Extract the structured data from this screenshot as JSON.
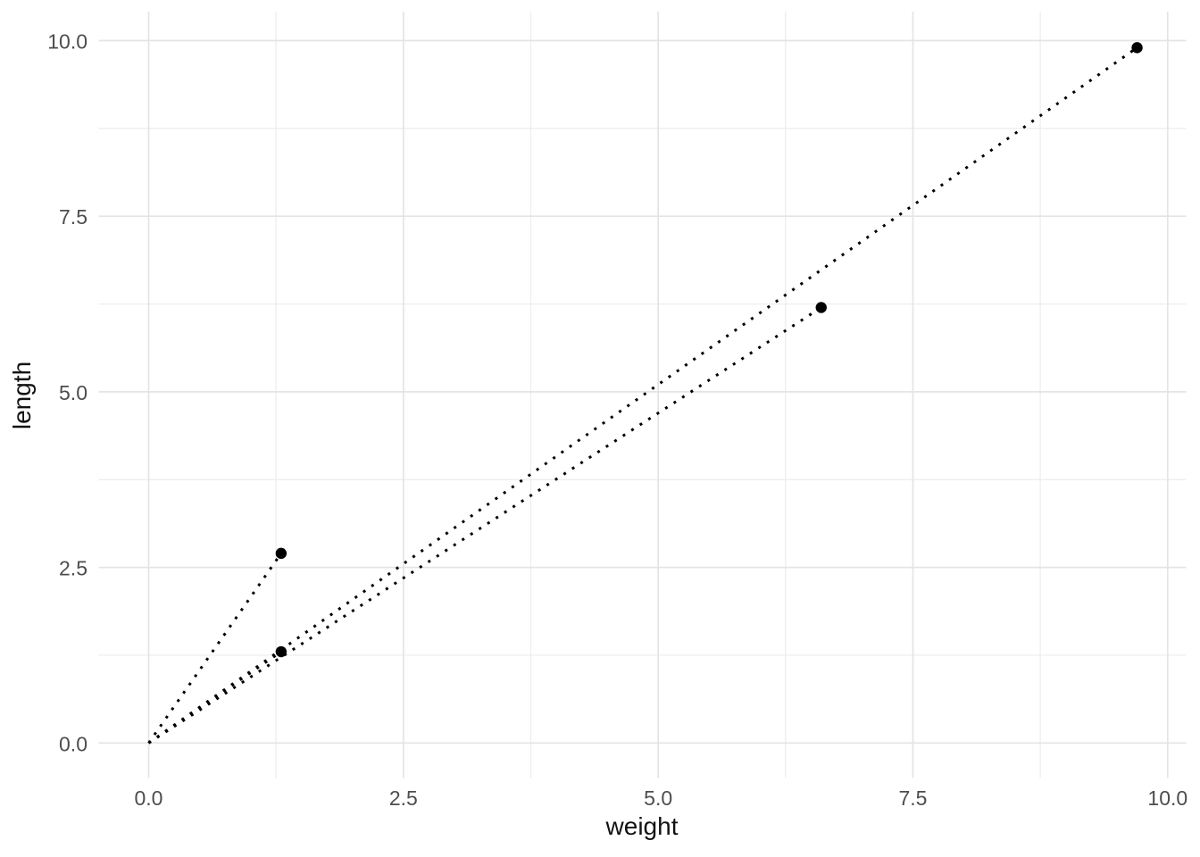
{
  "chart_data": {
    "type": "scatter",
    "title": "",
    "xlabel": "weight",
    "ylabel": "length",
    "x_ticks": [
      0,
      2.5,
      5,
      7.5,
      10
    ],
    "x_tick_labels": [
      "0.0",
      "2.5",
      "5.0",
      "7.5",
      "10.0"
    ],
    "y_ticks": [
      0,
      2.5,
      5,
      7.5,
      10
    ],
    "y_tick_labels": [
      "0.0",
      "2.5",
      "5.0",
      "7.5",
      "10.0"
    ],
    "x_minor_ticks": [
      1.25,
      3.75,
      6.25,
      8.75
    ],
    "y_minor_ticks": [
      1.25,
      3.75,
      6.25,
      8.75
    ],
    "xlim": [
      -0.49,
      10.19
    ],
    "ylim": [
      -0.5,
      10.4
    ],
    "grid": "major-and-minor",
    "legend_position": "none",
    "points": [
      {
        "weight": 1.3,
        "length": 2.7
      },
      {
        "weight": 1.3,
        "length": 1.3
      },
      {
        "weight": 6.6,
        "length": 6.2
      },
      {
        "weight": 9.7,
        "length": 9.9
      }
    ],
    "segments": [
      {
        "x1": 0,
        "y1": 0,
        "x2": 1.3,
        "y2": 2.7,
        "style": "dotted"
      },
      {
        "x1": 0,
        "y1": 0,
        "x2": 1.3,
        "y2": 1.3,
        "style": "dotted"
      },
      {
        "x1": 0,
        "y1": 0,
        "x2": 6.6,
        "y2": 6.2,
        "style": "dotted"
      },
      {
        "x1": 0,
        "y1": 0,
        "x2": 9.7,
        "y2": 9.9,
        "style": "dotted"
      }
    ]
  },
  "style": {
    "background": "#FFFFFF",
    "grid_major_color": "#E4E4E4",
    "grid_minor_color": "#ECECEC",
    "segment_color": "#000000",
    "point_color": "#000000",
    "tick_label_color": "#4D4D4D",
    "axis_title_color": "#121212"
  }
}
